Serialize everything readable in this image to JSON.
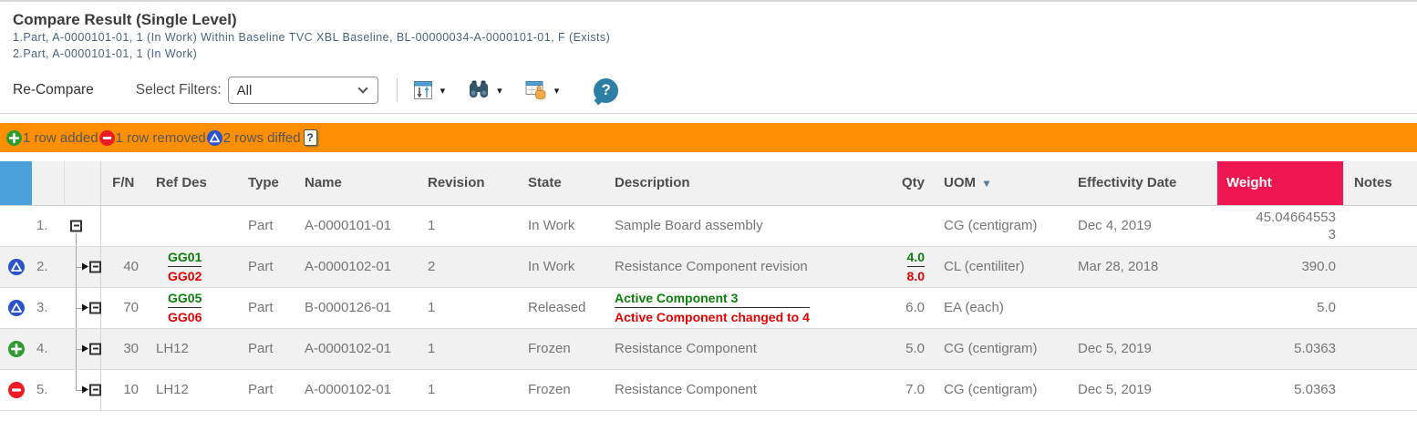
{
  "header": {
    "title": "Compare Result (Single Level)",
    "line1": "1.Part, A-0000101-01, 1 (In Work) Within Baseline TVC XBL Baseline, BL-00000034-A-0000101-01, F (Exists)",
    "line2": "2.Part, A-0000101-01, 1 (In Work)"
  },
  "toolbar": {
    "recompare_label": "Re-Compare",
    "filters_label": "Select Filters:",
    "filters_value": "All",
    "icons": [
      "column-arrange-icon",
      "binoculars-icon",
      "table-hand-icon",
      "help-icon"
    ]
  },
  "glyphs": {
    "question": "?",
    "caret": "▾",
    "sort_down": "▾"
  },
  "summary_bar": {
    "added_label": "1 row added",
    "removed_label": "1 row removed",
    "diffed_label": "2 rows diffed",
    "background": "#FF8E00",
    "icons": [
      "plus-icon",
      "minus-icon",
      "delta-icon",
      "whats-this-icon"
    ]
  },
  "colors": {
    "status_header_cell": "#4AA1D9",
    "selected_column": "#EE1650",
    "added": "#2E9B2E",
    "removed": "#ED1C24",
    "diffed": "#2B53CE",
    "diff_old_text": "#0A7F0A",
    "diff_new_text": "#E60000"
  },
  "table": {
    "columns": {
      "status": "",
      "rownum": "",
      "tree": "",
      "fn": "F/N",
      "refdes": "Ref Des",
      "type": "Type",
      "name": "Name",
      "revision": "Revision",
      "state": "State",
      "description": "Description",
      "qty": "Qty",
      "uom": "UOM",
      "effectivity_date": "Effectivity Date",
      "weight": "Weight",
      "notes": "Notes"
    },
    "rows": [
      {
        "num": "1.",
        "status": "",
        "tree": "root",
        "fn": "",
        "refdes": "",
        "type": "Part",
        "name": "A-0000101-01",
        "revision": "1",
        "state": "In Work",
        "description": "Sample Board assembly",
        "qty": "",
        "uom": "CG (centigram)",
        "effectivity_date": "Dec 4, 2019",
        "weight": "45.046645533",
        "notes": ""
      },
      {
        "num": "2.",
        "status": "diff-icon",
        "tree": "child",
        "fn": "40",
        "refdes": {
          "old": "GG01",
          "new": "GG02"
        },
        "type": "Part",
        "name": "A-0000102-01",
        "revision": "2",
        "state": "In Work",
        "description": "Resistance Component revision",
        "qty": {
          "old": "4.0",
          "new": "8.0"
        },
        "uom": "CL (centiliter)",
        "effectivity_date": "Mar 28, 2018",
        "weight": "390.0",
        "notes": ""
      },
      {
        "num": "3.",
        "status": "diff-icon",
        "tree": "child",
        "fn": "70",
        "refdes": {
          "old": "GG05",
          "new": "GG06"
        },
        "type": "Part",
        "name": "B-0000126-01",
        "revision": "1",
        "state": "Released",
        "description": {
          "old": "Active Component 3",
          "new": "Active Component changed to 4"
        },
        "qty": "6.0",
        "uom": "EA (each)",
        "effectivity_date": "",
        "weight": "5.0",
        "notes": ""
      },
      {
        "num": "4.",
        "status": "added-icon",
        "tree": "child",
        "fn": "30",
        "refdes": "LH12",
        "type": "Part",
        "name": "A-0000102-01",
        "revision": "1",
        "state": "Frozen",
        "description": "Resistance Component",
        "qty": "5.0",
        "uom": "CG (centigram)",
        "effectivity_date": "Dec 5, 2019",
        "weight": "5.0363",
        "notes": ""
      },
      {
        "num": "5.",
        "status": "removed-icon",
        "tree": "child-last",
        "fn": "10",
        "refdes": "LH12",
        "type": "Part",
        "name": "A-0000102-01",
        "revision": "1",
        "state": "Frozen",
        "description": "Resistance Component",
        "qty": "7.0",
        "uom": "CG (centigram)",
        "effectivity_date": "Dec 5, 2019",
        "weight": "5.0363",
        "notes": ""
      }
    ]
  }
}
